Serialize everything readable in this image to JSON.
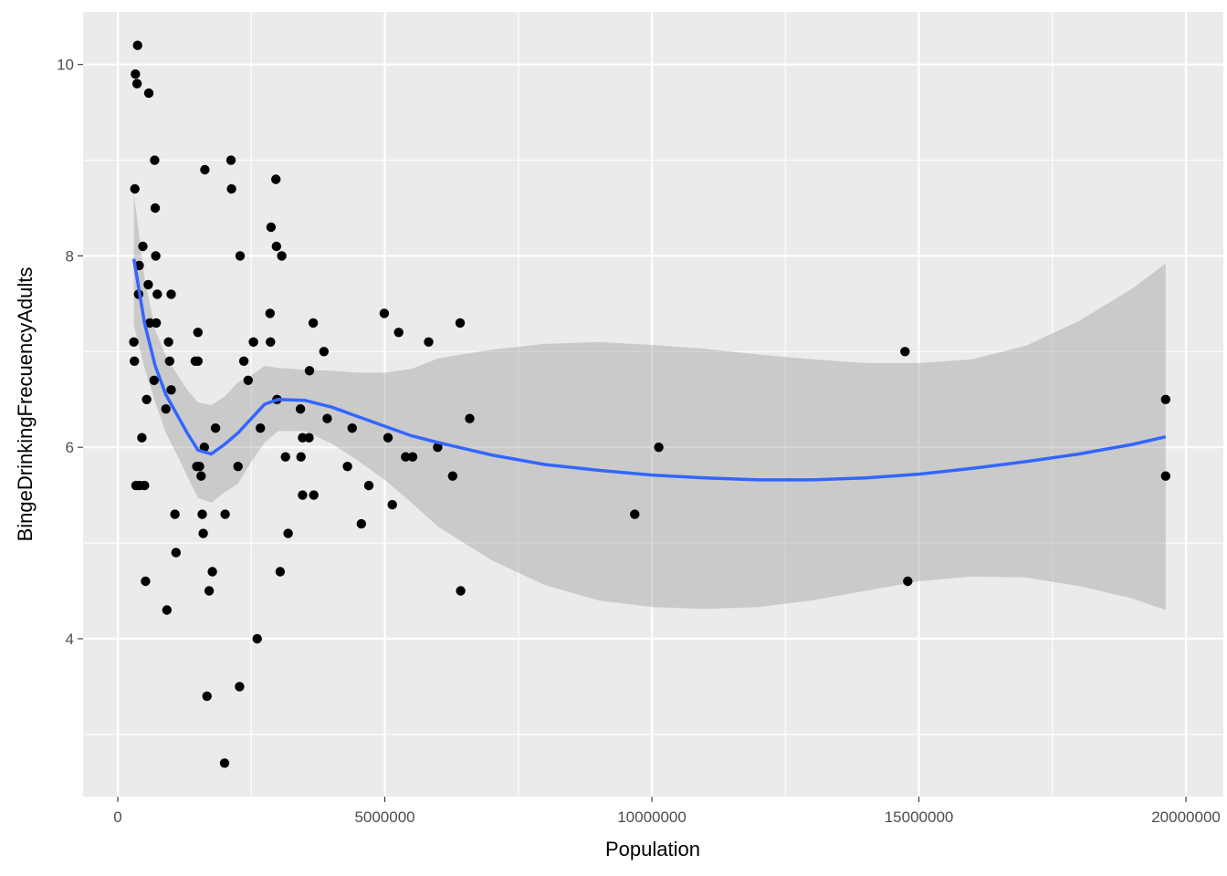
{
  "chart_data": {
    "type": "scatter",
    "title": "",
    "xlabel": "Population",
    "ylabel": "BingeDrinkingFrecuencyAdults",
    "xlim": [
      -650000,
      20700000
    ],
    "ylim": [
      2.35,
      10.55
    ],
    "x_ticks": [
      0,
      5000000,
      10000000,
      15000000,
      20000000
    ],
    "x_tick_labels": [
      "0",
      "5000000",
      "10000000",
      "15000000",
      "20000000"
    ],
    "y_ticks": [
      4,
      6,
      8,
      10
    ],
    "y_tick_labels": [
      "4",
      "6",
      "8",
      "10"
    ],
    "grid": true,
    "legend": "none",
    "colors": {
      "panel": "#ebebeb",
      "grid": "#ffffff",
      "points": "#000000",
      "smooth_line": "#3366ff",
      "ribbon": "#999999"
    },
    "points": [
      {
        "x": 300000,
        "y": 7.1
      },
      {
        "x": 310000,
        "y": 6.9
      },
      {
        "x": 320000,
        "y": 8.7
      },
      {
        "x": 330000,
        "y": 9.9
      },
      {
        "x": 340000,
        "y": 5.6
      },
      {
        "x": 360000,
        "y": 9.8
      },
      {
        "x": 370000,
        "y": 10.2
      },
      {
        "x": 390000,
        "y": 7.6
      },
      {
        "x": 400000,
        "y": 7.9
      },
      {
        "x": 410000,
        "y": 5.6
      },
      {
        "x": 450000,
        "y": 6.1
      },
      {
        "x": 470000,
        "y": 8.1
      },
      {
        "x": 500000,
        "y": 5.6
      },
      {
        "x": 520000,
        "y": 4.6
      },
      {
        "x": 540000,
        "y": 6.5
      },
      {
        "x": 570000,
        "y": 7.7
      },
      {
        "x": 580000,
        "y": 9.7
      },
      {
        "x": 600000,
        "y": 7.3
      },
      {
        "x": 680000,
        "y": 6.7
      },
      {
        "x": 690000,
        "y": 9.0
      },
      {
        "x": 700000,
        "y": 8.5
      },
      {
        "x": 710000,
        "y": 8.0
      },
      {
        "x": 720000,
        "y": 7.3
      },
      {
        "x": 740000,
        "y": 7.6
      },
      {
        "x": 900000,
        "y": 6.4
      },
      {
        "x": 920000,
        "y": 4.3
      },
      {
        "x": 950000,
        "y": 7.1
      },
      {
        "x": 970000,
        "y": 6.9
      },
      {
        "x": 1000000,
        "y": 7.6
      },
      {
        "x": 1000000,
        "y": 6.6
      },
      {
        "x": 1070000,
        "y": 5.3
      },
      {
        "x": 1090000,
        "y": 4.9
      },
      {
        "x": 1450000,
        "y": 6.9
      },
      {
        "x": 1480000,
        "y": 5.8
      },
      {
        "x": 1500000,
        "y": 7.2
      },
      {
        "x": 1500000,
        "y": 6.9
      },
      {
        "x": 1530000,
        "y": 5.8
      },
      {
        "x": 1560000,
        "y": 5.7
      },
      {
        "x": 1580000,
        "y": 5.3
      },
      {
        "x": 1600000,
        "y": 5.1
      },
      {
        "x": 1620000,
        "y": 6.0
      },
      {
        "x": 1630000,
        "y": 8.9
      },
      {
        "x": 1670000,
        "y": 3.4
      },
      {
        "x": 1710000,
        "y": 4.5
      },
      {
        "x": 1770000,
        "y": 4.7
      },
      {
        "x": 1830000,
        "y": 6.2
      },
      {
        "x": 2000000,
        "y": 2.7
      },
      {
        "x": 2010000,
        "y": 5.3
      },
      {
        "x": 2120000,
        "y": 9.0
      },
      {
        "x": 2130000,
        "y": 8.7
      },
      {
        "x": 2250000,
        "y": 5.8
      },
      {
        "x": 2280000,
        "y": 3.5
      },
      {
        "x": 2290000,
        "y": 8.0
      },
      {
        "x": 2360000,
        "y": 6.9
      },
      {
        "x": 2440000,
        "y": 6.7
      },
      {
        "x": 2540000,
        "y": 7.1
      },
      {
        "x": 2610000,
        "y": 4.0
      },
      {
        "x": 2670000,
        "y": 6.2
      },
      {
        "x": 2850000,
        "y": 7.4
      },
      {
        "x": 2860000,
        "y": 7.1
      },
      {
        "x": 2870000,
        "y": 8.3
      },
      {
        "x": 2960000,
        "y": 8.8
      },
      {
        "x": 2970000,
        "y": 8.1
      },
      {
        "x": 2980000,
        "y": 6.5
      },
      {
        "x": 3040000,
        "y": 4.7
      },
      {
        "x": 3070000,
        "y": 8.0
      },
      {
        "x": 3140000,
        "y": 5.9
      },
      {
        "x": 3190000,
        "y": 5.1
      },
      {
        "x": 3420000,
        "y": 6.4
      },
      {
        "x": 3430000,
        "y": 5.9
      },
      {
        "x": 3460000,
        "y": 6.1
      },
      {
        "x": 3460000,
        "y": 5.5
      },
      {
        "x": 3580000,
        "y": 6.1
      },
      {
        "x": 3590000,
        "y": 6.8
      },
      {
        "x": 3660000,
        "y": 7.3
      },
      {
        "x": 3670000,
        "y": 5.5
      },
      {
        "x": 3860000,
        "y": 7.0
      },
      {
        "x": 3920000,
        "y": 6.3
      },
      {
        "x": 4300000,
        "y": 5.8
      },
      {
        "x": 4390000,
        "y": 6.2
      },
      {
        "x": 4560000,
        "y": 5.2
      },
      {
        "x": 4700000,
        "y": 5.6
      },
      {
        "x": 4990000,
        "y": 7.4
      },
      {
        "x": 5060000,
        "y": 6.1
      },
      {
        "x": 5140000,
        "y": 5.4
      },
      {
        "x": 5260000,
        "y": 7.2
      },
      {
        "x": 5390000,
        "y": 5.9
      },
      {
        "x": 5520000,
        "y": 5.9
      },
      {
        "x": 5820000,
        "y": 7.1
      },
      {
        "x": 5990000,
        "y": 6.0
      },
      {
        "x": 6270000,
        "y": 5.7
      },
      {
        "x": 6410000,
        "y": 7.3
      },
      {
        "x": 6420000,
        "y": 4.5
      },
      {
        "x": 6590000,
        "y": 6.3
      },
      {
        "x": 9680000,
        "y": 5.3
      },
      {
        "x": 10130000,
        "y": 6.0
      },
      {
        "x": 14740000,
        "y": 7.0
      },
      {
        "x": 14790000,
        "y": 4.6
      },
      {
        "x": 19620000,
        "y": 6.5
      },
      {
        "x": 19620000,
        "y": 5.7
      }
    ],
    "smooth": [
      {
        "x": 300000,
        "y": 7.97,
        "lo": 7.28,
        "hi": 8.66
      },
      {
        "x": 500000,
        "y": 7.3,
        "lo": 6.83,
        "hi": 7.77
      },
      {
        "x": 700000,
        "y": 6.85,
        "lo": 6.47,
        "hi": 7.23
      },
      {
        "x": 900000,
        "y": 6.55,
        "lo": 6.15,
        "hi": 6.95
      },
      {
        "x": 1100000,
        "y": 6.35,
        "lo": 5.93,
        "hi": 6.77
      },
      {
        "x": 1300000,
        "y": 6.15,
        "lo": 5.7,
        "hi": 6.6
      },
      {
        "x": 1500000,
        "y": 5.97,
        "lo": 5.47,
        "hi": 6.47
      },
      {
        "x": 1750000,
        "y": 5.93,
        "lo": 5.42,
        "hi": 6.44
      },
      {
        "x": 2000000,
        "y": 6.03,
        "lo": 5.53,
        "hi": 6.53
      },
      {
        "x": 2250000,
        "y": 6.15,
        "lo": 5.62,
        "hi": 6.68
      },
      {
        "x": 2500000,
        "y": 6.3,
        "lo": 5.85,
        "hi": 6.75
      },
      {
        "x": 2750000,
        "y": 6.45,
        "lo": 6.05,
        "hi": 6.85
      },
      {
        "x": 3000000,
        "y": 6.5,
        "lo": 6.17,
        "hi": 6.83
      },
      {
        "x": 3500000,
        "y": 6.49,
        "lo": 6.17,
        "hi": 6.81
      },
      {
        "x": 4000000,
        "y": 6.42,
        "lo": 6.04,
        "hi": 6.8
      },
      {
        "x": 4500000,
        "y": 6.32,
        "lo": 5.86,
        "hi": 6.78
      },
      {
        "x": 5000000,
        "y": 6.22,
        "lo": 5.66,
        "hi": 6.78
      },
      {
        "x": 5500000,
        "y": 6.12,
        "lo": 5.42,
        "hi": 6.82
      },
      {
        "x": 6000000,
        "y": 6.05,
        "lo": 5.17,
        "hi": 6.93
      },
      {
        "x": 7000000,
        "y": 5.92,
        "lo": 4.82,
        "hi": 7.02
      },
      {
        "x": 8000000,
        "y": 5.82,
        "lo": 4.56,
        "hi": 7.08
      },
      {
        "x": 9000000,
        "y": 5.76,
        "lo": 4.4,
        "hi": 7.1
      },
      {
        "x": 10000000,
        "y": 5.71,
        "lo": 4.33,
        "hi": 7.07
      },
      {
        "x": 11000000,
        "y": 5.68,
        "lo": 4.31,
        "hi": 7.03
      },
      {
        "x": 12000000,
        "y": 5.66,
        "lo": 4.33,
        "hi": 6.97
      },
      {
        "x": 13000000,
        "y": 5.66,
        "lo": 4.4,
        "hi": 6.92
      },
      {
        "x": 14000000,
        "y": 5.68,
        "lo": 4.5,
        "hi": 6.88
      },
      {
        "x": 15000000,
        "y": 5.72,
        "lo": 4.6,
        "hi": 6.88
      },
      {
        "x": 16000000,
        "y": 5.78,
        "lo": 4.65,
        "hi": 6.92
      },
      {
        "x": 17000000,
        "y": 5.85,
        "lo": 4.64,
        "hi": 7.06
      },
      {
        "x": 18000000,
        "y": 5.93,
        "lo": 4.55,
        "hi": 7.32
      },
      {
        "x": 19000000,
        "y": 6.03,
        "lo": 4.42,
        "hi": 7.66
      },
      {
        "x": 19620000,
        "y": 6.11,
        "lo": 4.3,
        "hi": 7.92
      }
    ]
  }
}
